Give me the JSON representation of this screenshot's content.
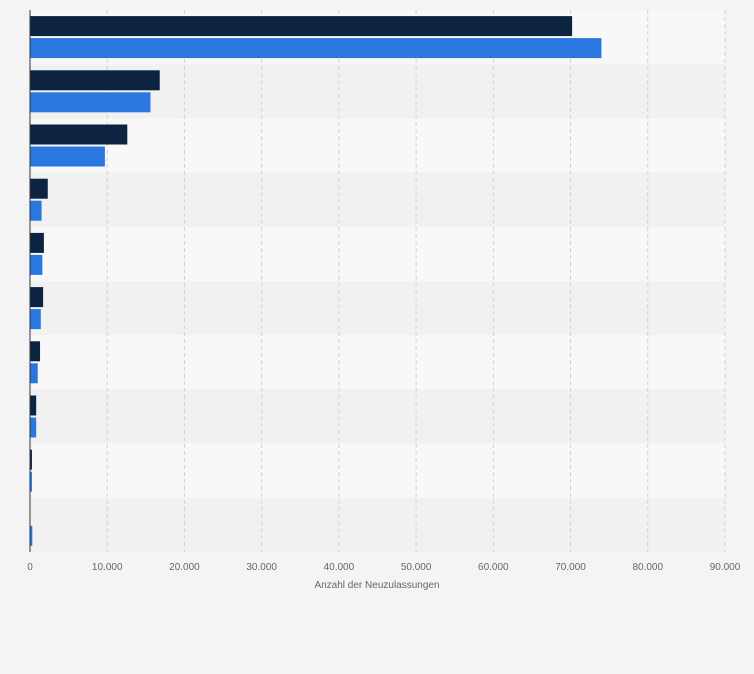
{
  "colors": {
    "background": "#f4f4f4",
    "band_light": "#f8f8f8",
    "band_dark": "#f1f1f1",
    "grid": "#d2d2d2",
    "axis_text": "#666666",
    "series_1": "#0c2441",
    "series_2": "#2a77e0"
  },
  "chart_data": {
    "type": "bar",
    "orientation": "horizontal",
    "xlabel": "Anzahl der Neuzulassungen",
    "ylabel": "",
    "xlim": [
      0,
      90000
    ],
    "x_ticks": [
      0,
      10000,
      20000,
      30000,
      40000,
      50000,
      60000,
      70000,
      80000,
      90000
    ],
    "x_tick_labels": [
      "0",
      "10.000",
      "20.000",
      "30.000",
      "40.000",
      "50.000",
      "60.000",
      "70.000",
      "80.000",
      "90.000"
    ],
    "grid": true,
    "categories": [
      "",
      "",
      "",
      "",
      "",
      "",
      "",
      "",
      "",
      ""
    ],
    "series": [
      {
        "values": [
          70200,
          16800,
          12600,
          2300,
          1800,
          1700,
          1300,
          800,
          250,
          0
        ]
      },
      {
        "values": [
          74000,
          15600,
          9700,
          1500,
          1600,
          1400,
          1000,
          800,
          250,
          300
        ]
      }
    ]
  }
}
